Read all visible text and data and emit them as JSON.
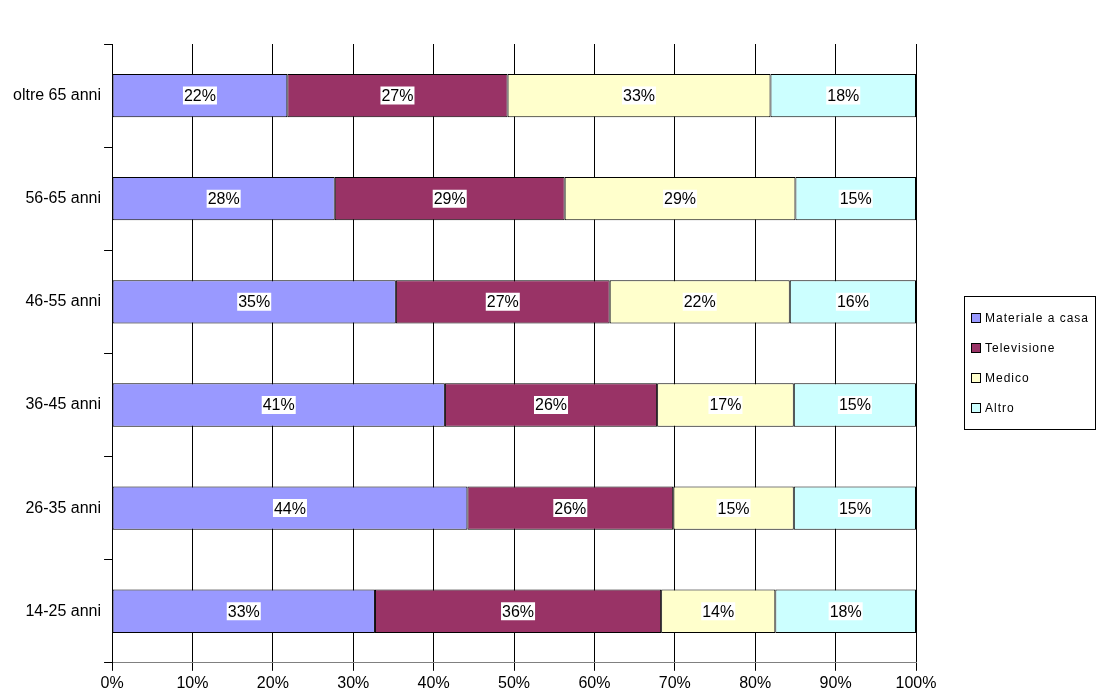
{
  "chart_data": {
    "type": "bar",
    "orientation": "horizontal",
    "stacked": true,
    "categories": [
      "oltre 65 anni",
      "56-65 anni",
      "46-55 anni",
      "36-45 anni",
      "26-35 anni",
      "14-25 anni"
    ],
    "series": [
      {
        "name": "Materiale a casa",
        "color": "#9999ff",
        "values": [
          21.8,
          27.7,
          35.3,
          41.4,
          44.2,
          32.7
        ],
        "value_labels": [
          "22%",
          "28%",
          "35%",
          "41%",
          "44%",
          "33%"
        ]
      },
      {
        "name": "Televisione",
        "color": "#993366",
        "values": [
          27.4,
          28.6,
          26.6,
          26.4,
          25.6,
          35.6
        ],
        "value_labels": [
          "27%",
          "29%",
          "27%",
          "26%",
          "26%",
          "36%"
        ]
      },
      {
        "name": "Medico",
        "color": "#ffffcc",
        "values": [
          32.7,
          28.7,
          22.4,
          17.0,
          15.0,
          14.2
        ],
        "value_labels": [
          "33%",
          "29%",
          "22%",
          "17%",
          "15%",
          "14%"
        ]
      },
      {
        "name": "Altro",
        "color": "#ccffff",
        "values": [
          18.1,
          15.0,
          15.7,
          15.2,
          15.2,
          17.5
        ],
        "value_labels": [
          "18%",
          "15%",
          "16%",
          "15%",
          "15%",
          "18%"
        ]
      }
    ],
    "xlim": [
      0,
      100
    ],
    "xticks": [
      {
        "value": 0,
        "label": "0%"
      },
      {
        "value": 10,
        "label": "10%"
      },
      {
        "value": 20,
        "label": "20%"
      },
      {
        "value": 30,
        "label": "30%"
      },
      {
        "value": 40,
        "label": "40%"
      },
      {
        "value": 50,
        "label": "50%"
      },
      {
        "value": 60,
        "label": "60%"
      },
      {
        "value": 70,
        "label": "70%"
      },
      {
        "value": 80,
        "label": "80%"
      },
      {
        "value": 90,
        "label": "90%"
      },
      {
        "value": 100,
        "label": "100%"
      }
    ],
    "grid": "x",
    "legend": "right"
  }
}
